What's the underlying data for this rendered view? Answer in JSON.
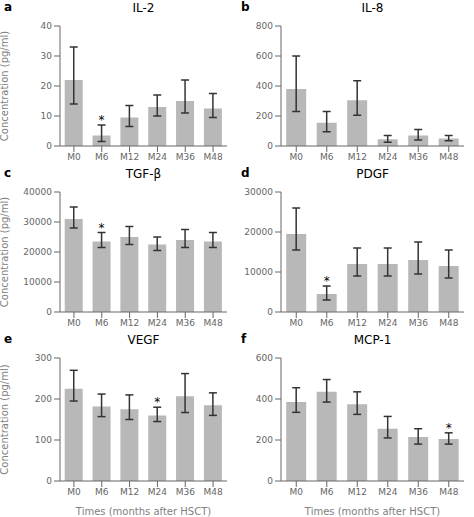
{
  "chart_data": [
    {
      "type": "bar",
      "label": "a",
      "title": "IL-2",
      "ylabel": "Concentration (pg/ml)",
      "categories": [
        "M0",
        "M6",
        "M12",
        "M24",
        "M36",
        "M48"
      ],
      "values": [
        22,
        3.5,
        9.5,
        13,
        15,
        12.5
      ],
      "errors_upper": [
        11,
        3.5,
        4,
        4,
        7,
        5
      ],
      "errors_lower": [
        8,
        2,
        3,
        3,
        4,
        3
      ],
      "annotations": [
        {
          "category": "M6",
          "text": "*"
        }
      ],
      "color": "#b8b8b8",
      "ylim": [
        0,
        40
      ],
      "yticks": [
        0,
        10,
        20,
        30,
        40
      ],
      "grid": false
    },
    {
      "type": "bar",
      "label": "b",
      "title": "IL-8",
      "categories": [
        "M0",
        "M6",
        "M12",
        "M24",
        "M36",
        "M48"
      ],
      "values": [
        380,
        155,
        305,
        45,
        70,
        50
      ],
      "errors_upper": [
        220,
        75,
        130,
        25,
        40,
        20
      ],
      "errors_lower": [
        150,
        60,
        100,
        20,
        30,
        15
      ],
      "annotations": [],
      "color": "#b8b8b8",
      "ylim": [
        0,
        800
      ],
      "yticks": [
        0,
        200,
        400,
        600,
        800
      ],
      "grid": false
    },
    {
      "type": "bar",
      "label": "c",
      "title": "TGF-β",
      "ylabel": "Concentration (pg/ml)",
      "categories": [
        "M0",
        "M6",
        "M12",
        "M24",
        "M36",
        "M48"
      ],
      "values": [
        31000,
        23500,
        25000,
        22500,
        24000,
        23500
      ],
      "errors_upper": [
        4000,
        3000,
        3500,
        2500,
        3500,
        3000
      ],
      "errors_lower": [
        3000,
        2000,
        2500,
        2000,
        2500,
        2000
      ],
      "annotations": [
        {
          "category": "M6",
          "text": "*"
        }
      ],
      "color": "#b8b8b8",
      "ylim": [
        0,
        40000
      ],
      "yticks": [
        0,
        10000,
        20000,
        30000,
        40000
      ],
      "grid": false
    },
    {
      "type": "bar",
      "label": "d",
      "title": "PDGF",
      "categories": [
        "M0",
        "M6",
        "M12",
        "M24",
        "M36",
        "M48"
      ],
      "values": [
        19500,
        4500,
        12000,
        12000,
        13000,
        11500
      ],
      "errors_upper": [
        6500,
        2000,
        4000,
        4000,
        4500,
        4000
      ],
      "errors_lower": [
        4000,
        1500,
        3000,
        3000,
        3500,
        3000
      ],
      "annotations": [
        {
          "category": "M6",
          "text": "*"
        }
      ],
      "color": "#b8b8b8",
      "ylim": [
        0,
        30000
      ],
      "yticks": [
        0,
        10000,
        20000,
        30000
      ],
      "grid": false
    },
    {
      "type": "bar",
      "label": "e",
      "title": "VEGF",
      "ylabel": "Concentration (pg/ml)",
      "xlabel": "Times (months after HSCT)",
      "categories": [
        "M0",
        "M6",
        "M12",
        "M24",
        "M36",
        "M48"
      ],
      "values": [
        225,
        182,
        175,
        160,
        207,
        185
      ],
      "errors_upper": [
        45,
        30,
        35,
        20,
        55,
        30
      ],
      "errors_lower": [
        30,
        25,
        25,
        15,
        40,
        25
      ],
      "annotations": [
        {
          "category": "M24",
          "text": "*"
        }
      ],
      "color": "#b8b8b8",
      "ylim": [
        0,
        300
      ],
      "yticks": [
        0,
        100,
        200,
        300
      ],
      "grid": false
    },
    {
      "type": "bar",
      "label": "f",
      "title": "MCP-1",
      "xlabel": "Times (months after HSCT)",
      "categories": [
        "M0",
        "M6",
        "M12",
        "M24",
        "M36",
        "M48"
      ],
      "values": [
        385,
        435,
        375,
        255,
        215,
        205
      ],
      "errors_upper": [
        70,
        60,
        60,
        60,
        40,
        30
      ],
      "errors_lower": [
        50,
        50,
        50,
        45,
        35,
        25
      ],
      "annotations": [
        {
          "category": "M48",
          "text": "*"
        }
      ],
      "color": "#b8b8b8",
      "ylim": [
        0,
        600
      ],
      "yticks": [
        0,
        200,
        400,
        600
      ],
      "grid": false
    }
  ]
}
